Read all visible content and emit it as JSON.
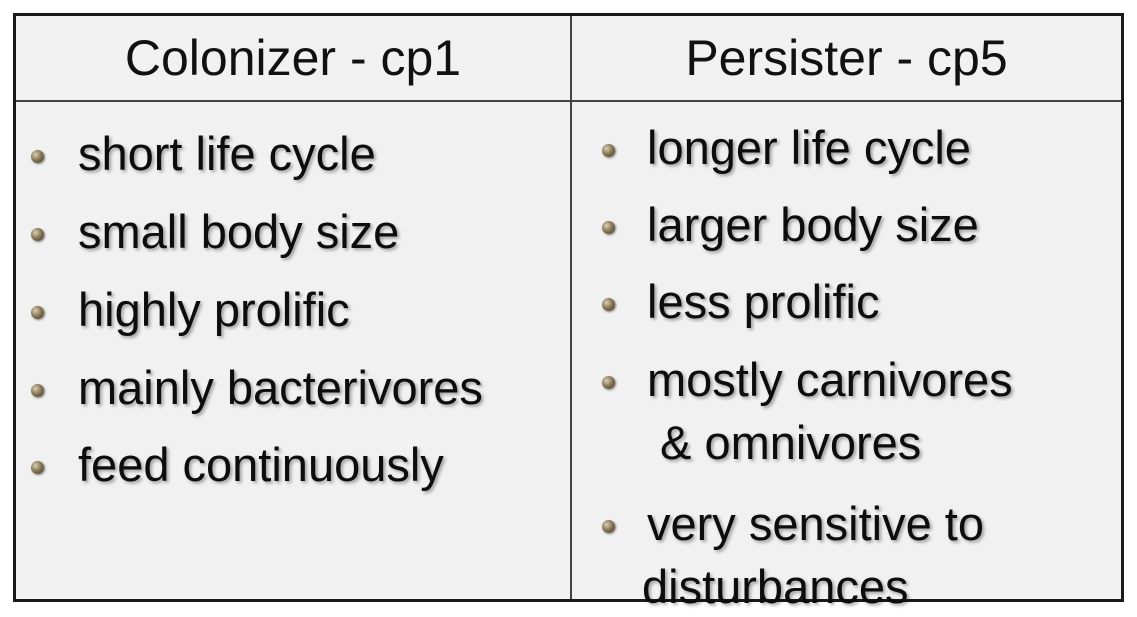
{
  "table": {
    "left_header": "Colonizer - cp1",
    "right_header": "Persister - cp5",
    "left_items": [
      "short life cycle",
      "small body size",
      "highly prolific",
      "mainly bacterivores",
      "feed continuously"
    ],
    "right_items": [
      {
        "line1": "longer life cycle",
        "line2": ""
      },
      {
        "line1": "larger body size",
        "line2": ""
      },
      {
        "line1": "less prolific",
        "line2": ""
      },
      {
        "line1": "mostly carnivores",
        "line2": " & omnivores"
      },
      {
        "line1": "very sensitive to",
        "line2": "disturbances"
      }
    ]
  }
}
